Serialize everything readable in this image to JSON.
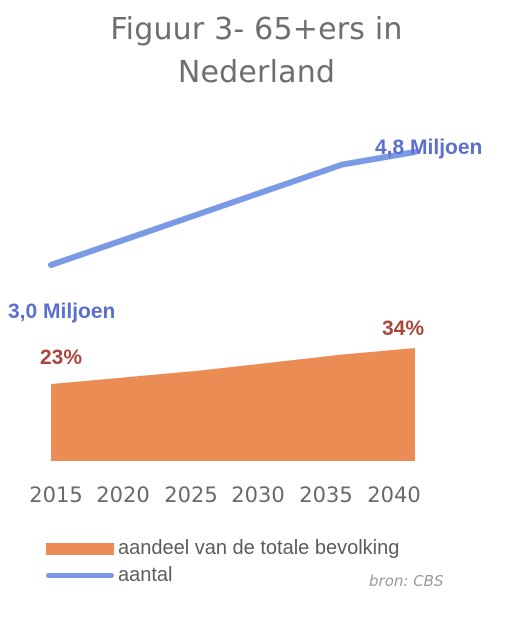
{
  "title_lines": [
    "Figuur 3- 65+ers in",
    "Nederland"
  ],
  "source": "bron: CBS",
  "colors": {
    "area": "#eb8c55",
    "line": "#7a9ae6",
    "label_blue": "#5b6fce",
    "label_red": "#a9473e",
    "axis_text": "#6a6a6a",
    "title": "#6f6f6f"
  },
  "chart_data": {
    "type": "line+area",
    "x": [
      2015,
      2020,
      2025,
      2030,
      2035,
      2040
    ],
    "tick_labels": [
      "2015",
      "2020",
      "2025",
      "2030",
      "2035",
      "2040"
    ],
    "series": [
      {
        "name": "aantal",
        "type": "line",
        "unit": "Miljoen",
        "values": [
          3.0,
          3.4,
          3.8,
          4.2,
          4.6,
          4.8
        ],
        "labels": {
          "start": "3,0 Miljoen",
          "end": "4,8 Miljoen"
        }
      },
      {
        "name": "aandeel van de totale bevolking",
        "type": "area",
        "unit": "%",
        "values": [
          23,
          25,
          27,
          29.5,
          32,
          34
        ],
        "labels": {
          "start": "23%",
          "end": "34%"
        }
      }
    ],
    "legend": [
      "aandeel van de totale bevolking",
      "aantal"
    ],
    "legend_position": "bottom-left",
    "grid": false
  }
}
